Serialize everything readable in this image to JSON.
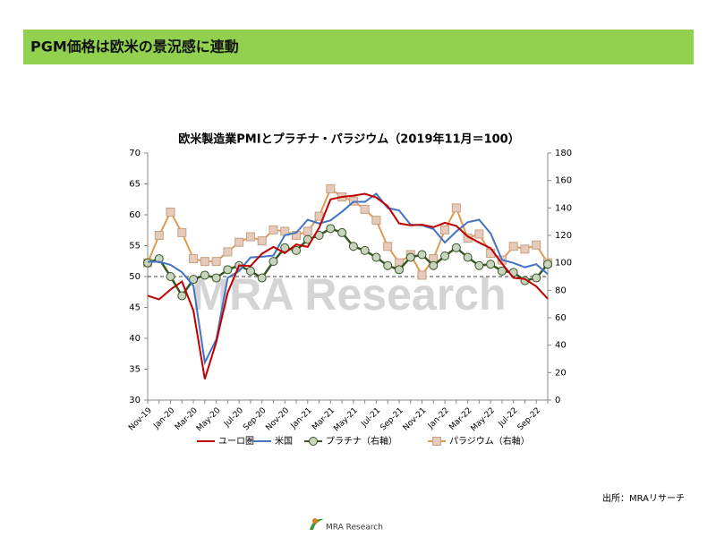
{
  "header": {
    "title": "PGM価格は欧米の景況感に連動"
  },
  "chart_data": {
    "type": "line",
    "title": "欧米製造業PMIとプラチナ・パラジウム（2019年11月＝100）",
    "categories": [
      "Nov-19",
      null,
      "Jan-20",
      null,
      "Mar-20",
      null,
      "May-20",
      null,
      "Jul-20",
      null,
      "Sep-20",
      null,
      "Nov-20",
      null,
      "Jan-21",
      null,
      "Mar-21",
      null,
      "May-21",
      null,
      "Jul-21",
      null,
      "Sep-21",
      null,
      "Nov-21",
      null,
      "Jan-22",
      null,
      "Mar-22",
      null,
      "May-22",
      null,
      "Jul-22",
      null,
      "Sep-22",
      null
    ],
    "series": [
      {
        "name": "ユーロ圏",
        "color": "#c00000",
        "axis": "y",
        "marker": false,
        "values": [
          46.9,
          46.3,
          47.9,
          49.2,
          44.5,
          33.4,
          39.4,
          47.4,
          51.8,
          51.7,
          53.7,
          54.8,
          53.8,
          55.2,
          54.8,
          57.9,
          62.5,
          62.9,
          63.1,
          63.4,
          62.8,
          61.4,
          58.6,
          58.3,
          58.4,
          58.0,
          58.7,
          58.2,
          56.5,
          55.5,
          54.6,
          52.1,
          49.8,
          49.6,
          48.4,
          46.4
        ]
      },
      {
        "name": "米国",
        "color": "#4472c4",
        "axis": "y",
        "marker": false,
        "values": [
          52.4,
          52.4,
          51.9,
          50.7,
          48.5,
          36.1,
          39.8,
          49.8,
          50.9,
          53.1,
          53.2,
          53.4,
          56.7,
          57.1,
          59.2,
          58.6,
          59.1,
          60.5,
          62.1,
          62.1,
          63.4,
          61.1,
          60.7,
          58.4,
          58.3,
          57.7,
          55.5,
          57.3,
          58.8,
          59.2,
          57.0,
          52.7,
          52.2,
          51.5,
          52.0,
          50.4
        ]
      },
      {
        "name": "プラチナ（右軸）",
        "color": "#375623",
        "marker_fill": "#c8d4c0",
        "axis": "y2",
        "marker": true,
        "values": [
          100,
          103,
          90,
          76,
          88,
          91,
          89,
          95,
          98,
          94,
          89,
          101,
          111,
          109,
          117,
          120,
          125,
          122,
          112,
          109,
          104,
          98,
          95,
          104,
          106,
          98,
          105,
          111,
          104,
          98,
          99,
          94,
          93,
          87,
          89,
          99
        ]
      },
      {
        "name": "パラジウム（右軸）",
        "color": "#e09a4c",
        "marker_fill": "#e6cbbd",
        "axis": "y2",
        "marker": true,
        "values": [
          100,
          120,
          137,
          122,
          103,
          101,
          101,
          108,
          115,
          119,
          116,
          124,
          123,
          120,
          123,
          134,
          154,
          148,
          145,
          139,
          131,
          112,
          100,
          106,
          91,
          103,
          124,
          140,
          118,
          121,
          107,
          102,
          112,
          110,
          113,
          100
        ]
      }
    ],
    "ylim": [
      30,
      70
    ],
    "yticks": [
      30,
      35,
      40,
      45,
      50,
      55,
      60,
      65,
      70
    ],
    "y2lim": [
      0,
      180
    ],
    "y2ticks": [
      0,
      20,
      40,
      60,
      80,
      100,
      120,
      140,
      160,
      180
    ],
    "reference_y": 50,
    "legend": "bottom",
    "watermark": "MRA Research"
  },
  "source": "出所：MRAリサーチ",
  "footer": {
    "logo": "MRA Research"
  }
}
